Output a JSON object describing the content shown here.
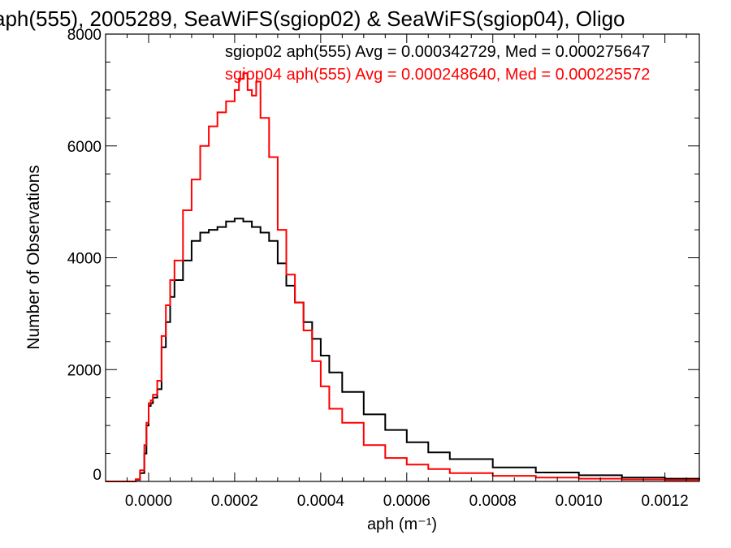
{
  "chart_data": {
    "type": "line",
    "title": "aph(555), 2005289, SeaWiFS(sgiop02) & SeaWiFS(sgiop04), Oligo",
    "xlabel": "aph (m⁻¹)",
    "ylabel": "Number of Observations",
    "xlim": [
      -0.0001,
      0.00128
    ],
    "ylim": [
      0,
      8000
    ],
    "xticks": [
      "0.0000",
      "0.0002",
      "0.0004",
      "0.0006",
      "0.0008",
      "0.0010",
      "0.0012"
    ],
    "xtick_values": [
      0.0,
      0.0002,
      0.0004,
      0.0006,
      0.0008,
      0.001,
      0.0012
    ],
    "yticks": [
      "0",
      "2000",
      "4000",
      "6000",
      "8000"
    ],
    "ytick_values": [
      0,
      2000,
      4000,
      6000,
      8000
    ],
    "grid": false,
    "legend_placement": "top-right",
    "annotations": [
      {
        "text": "sgiop02 aph(555) Avg = 0.000342729, Med = 0.000275647",
        "color": "#000000"
      },
      {
        "text": "sgiop04 aph(555) Avg = 0.000248640, Med = 0.000225572",
        "color": "#ff0000"
      }
    ],
    "series": [
      {
        "color": "#000000",
        "x": [
          -0.0001,
          -5e-05,
          -3e-05,
          -2e-05,
          -1e-05,
          -5e-06,
          0.0,
          5e-06,
          1e-05,
          2e-05,
          3e-05,
          4e-05,
          5e-05,
          6e-05,
          8e-05,
          0.0001,
          0.00012,
          0.00014,
          0.00016,
          0.00018,
          0.0002,
          0.00022,
          0.00024,
          0.00026,
          0.00028,
          0.0003,
          0.00032,
          0.00034,
          0.00036,
          0.00038,
          0.0004,
          0.00042,
          0.00045,
          0.0005,
          0.00055,
          0.0006,
          0.00065,
          0.0007,
          0.0008,
          0.0009,
          0.001,
          0.0011,
          0.0012,
          0.00128
        ],
        "y": [
          0,
          0,
          30,
          150,
          500,
          1000,
          1350,
          1400,
          1500,
          1650,
          2400,
          2850,
          3300,
          3600,
          3950,
          4300,
          4450,
          4500,
          4550,
          4650,
          4700,
          4650,
          4550,
          4450,
          4300,
          3900,
          3500,
          3200,
          2850,
          2550,
          2250,
          1950,
          1600,
          1200,
          920,
          700,
          520,
          400,
          250,
          160,
          110,
          70,
          50,
          40
        ]
      },
      {
        "color": "#ff0000",
        "x": [
          -0.0001,
          -5e-05,
          -3e-05,
          -2e-05,
          -1e-05,
          -5e-06,
          0.0,
          5e-06,
          1e-05,
          2e-05,
          3e-05,
          4e-05,
          5e-05,
          6e-05,
          8e-05,
          0.0001,
          0.00012,
          0.00014,
          0.00016,
          0.00018,
          0.0002,
          0.00021,
          0.00022,
          0.00023,
          0.00024,
          0.00025,
          0.00026,
          0.00028,
          0.0003,
          0.00032,
          0.00034,
          0.00036,
          0.00038,
          0.0004,
          0.00042,
          0.00045,
          0.0005,
          0.00055,
          0.0006,
          0.00065,
          0.0007,
          0.0008,
          0.0009,
          0.001,
          0.0011,
          0.0012,
          0.00128
        ],
        "y": [
          0,
          0,
          40,
          200,
          650,
          1050,
          1400,
          1450,
          1550,
          1800,
          2600,
          3150,
          3600,
          3950,
          4850,
          5400,
          6000,
          6350,
          6600,
          6800,
          7000,
          7200,
          7300,
          7000,
          6900,
          7150,
          6500,
          5800,
          4500,
          3700,
          3200,
          2700,
          2150,
          1700,
          1300,
          1050,
          650,
          420,
          300,
          220,
          150,
          100,
          70,
          50,
          35,
          25,
          20
        ]
      }
    ]
  }
}
